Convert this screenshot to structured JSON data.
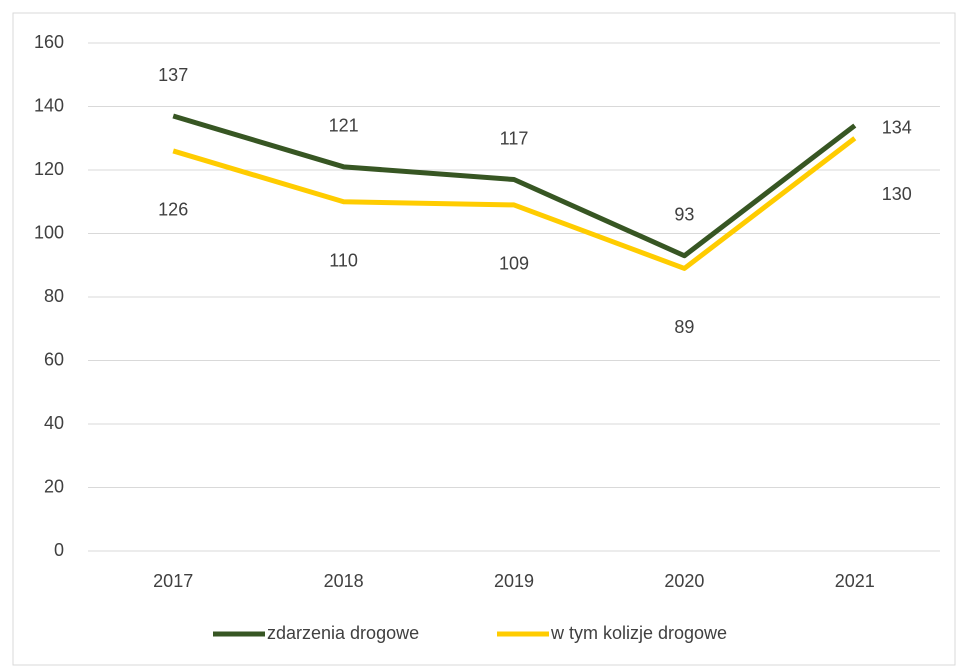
{
  "chart_data": {
    "type": "line",
    "categories": [
      "2017",
      "2018",
      "2019",
      "2020",
      "2021"
    ],
    "series": [
      {
        "name": "zdarzenia drogowe",
        "color": "#375623",
        "values": [
          137,
          121,
          117,
          93,
          134
        ]
      },
      {
        "name": "w tym kolizje drogowe",
        "color": "#ffcc00",
        "values": [
          126,
          110,
          109,
          89,
          130
        ]
      }
    ],
    "ylim": [
      0,
      160
    ],
    "yticks": [
      0,
      20,
      40,
      60,
      80,
      100,
      120,
      140,
      160
    ],
    "grid": true,
    "legend": "bottom"
  }
}
